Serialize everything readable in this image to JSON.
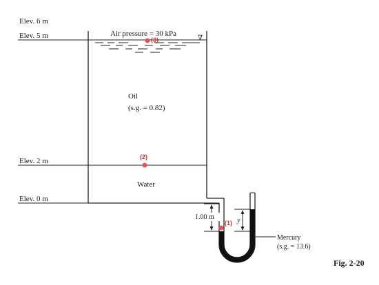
{
  "elevations": {
    "e6": "Elev. 6 m",
    "e5": "Elev. 5 m",
    "e2": "Elev. 2 m",
    "e0": "Elev. 0 m"
  },
  "air_pressure": "Air pressure = 30 kPa",
  "free_surface_symbol": "∇",
  "oil": {
    "label": "Oil",
    "sg": "(s.g. = 0.82)"
  },
  "water": {
    "label": "Water"
  },
  "mercury": {
    "label": "Mercury",
    "sg": "(s.g. = 13.6)"
  },
  "dimension_label": "1.00 m",
  "dimension_y": "y",
  "points": {
    "p1": "(1)",
    "p2": "(2)",
    "p3": "(3)"
  },
  "figure_label": "Fig. 2-20",
  "colors": {
    "ink": "#222222",
    "marker": "#e05555",
    "marker_text": "#c83232",
    "mercury": "#111111"
  }
}
